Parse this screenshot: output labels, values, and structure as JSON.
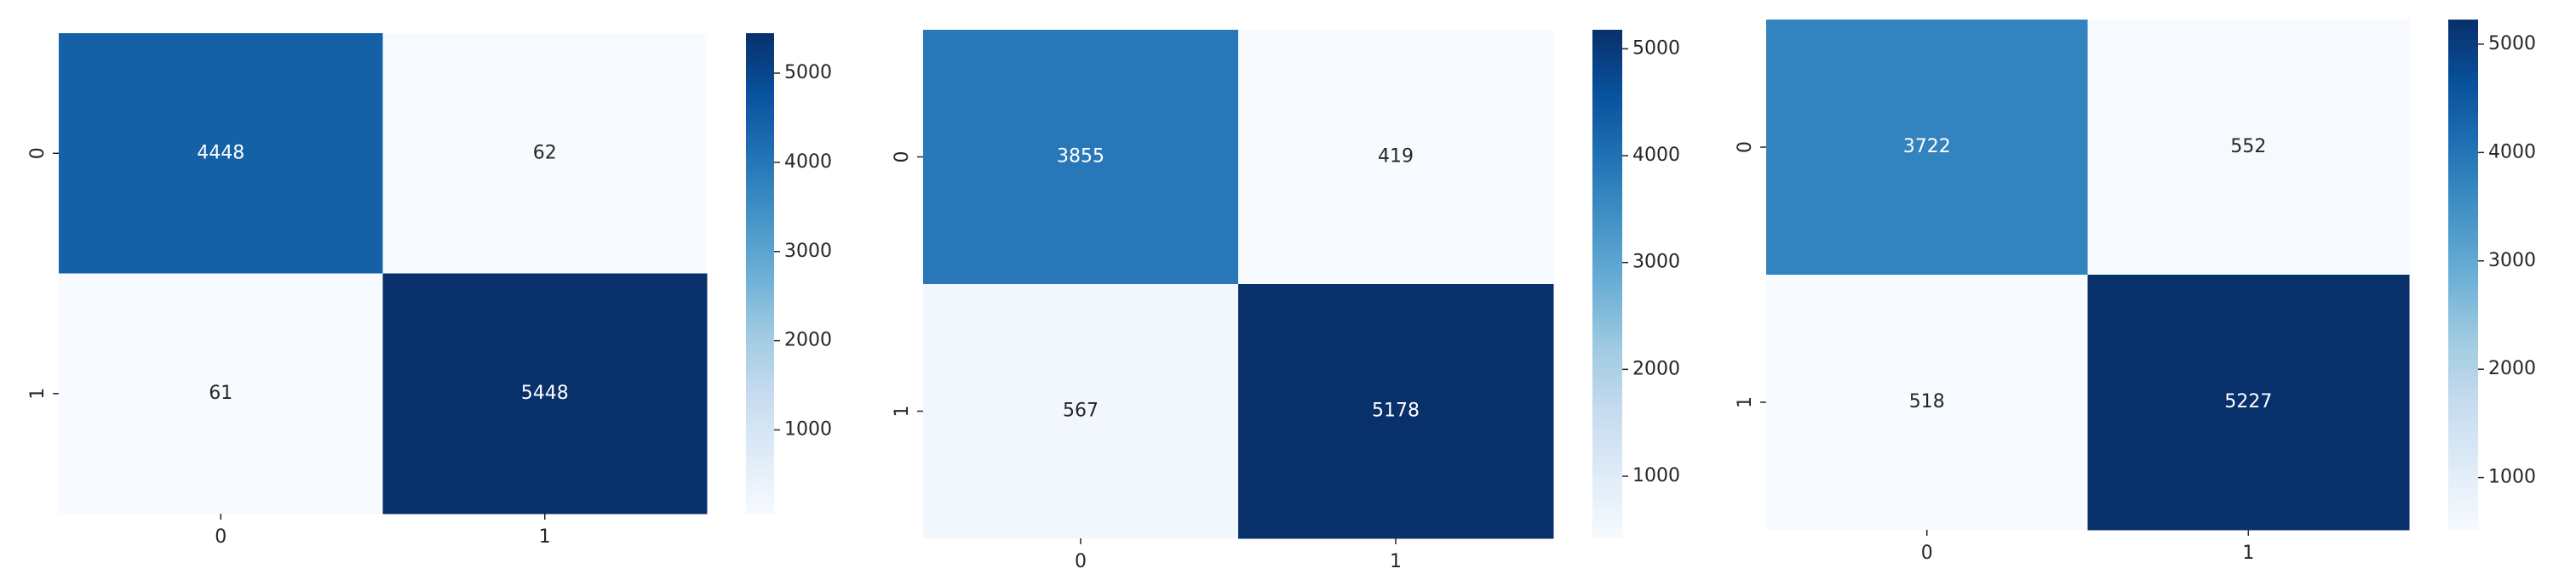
{
  "chart_data": [
    {
      "type": "heatmap",
      "cmap": "Blues",
      "x": [
        "0",
        "1"
      ],
      "y": [
        "0",
        "1"
      ],
      "values": [
        [
          4448,
          62
        ],
        [
          61,
          5448
        ]
      ],
      "clim": [
        61,
        5448
      ],
      "cticks": [
        1000,
        2000,
        3000,
        4000,
        5000
      ]
    },
    {
      "type": "heatmap",
      "cmap": "Blues",
      "x": [
        "0",
        "1"
      ],
      "y": [
        "0",
        "1"
      ],
      "values": [
        [
          3855,
          419
        ],
        [
          567,
          5178
        ]
      ],
      "clim": [
        419,
        5178
      ],
      "cticks": [
        1000,
        2000,
        3000,
        4000,
        5000
      ]
    },
    {
      "type": "heatmap",
      "cmap": "Blues",
      "x": [
        "0",
        "1"
      ],
      "y": [
        "0",
        "1"
      ],
      "values": [
        [
          3722,
          552
        ],
        [
          518,
          5227
        ]
      ],
      "clim": [
        518,
        5227
      ],
      "cticks": [
        1000,
        2000,
        3000,
        4000,
        5000
      ]
    }
  ]
}
